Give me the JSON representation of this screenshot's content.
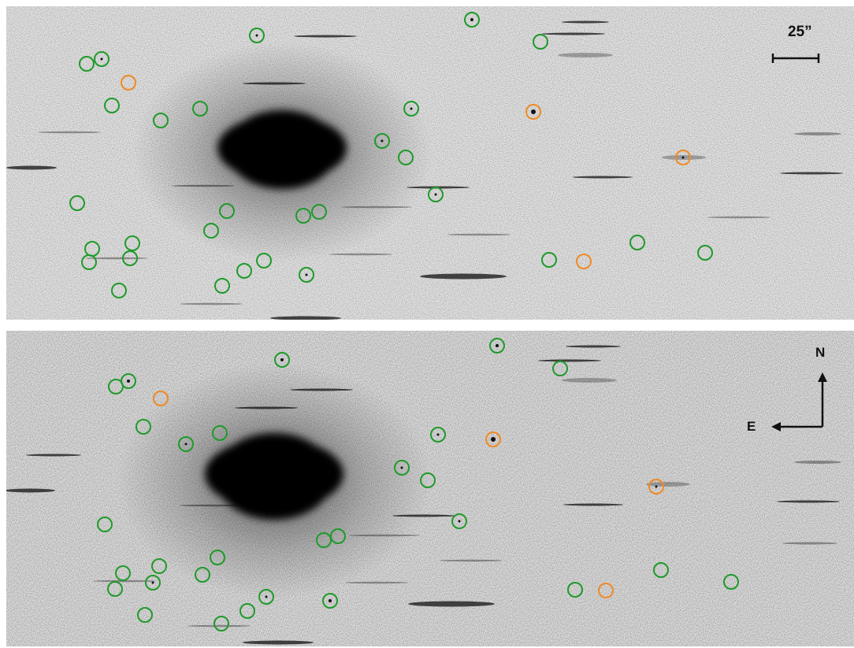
{
  "figure": {
    "scale_bar_label": "25”",
    "compass": {
      "north": "N",
      "east": "E"
    },
    "marker_colors": {
      "green": "#1f9a2a",
      "orange": "#f08a24"
    },
    "panels": [
      "top",
      "bottom"
    ]
  }
}
